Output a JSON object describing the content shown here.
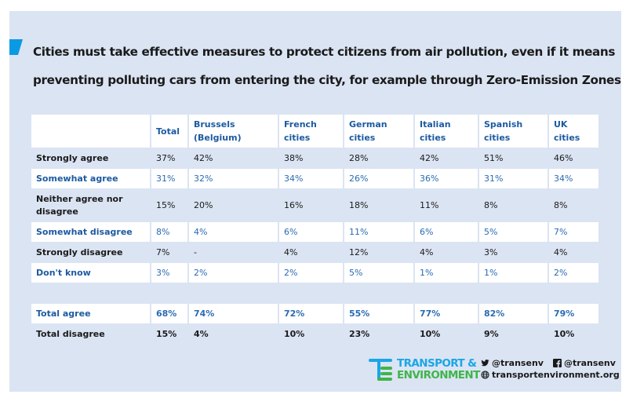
{
  "title": {
    "line1": "Cities must take effective measures to protect citizens from air pollution, even if it means",
    "line2": "preventing polluting cars from entering the city, for example through Zero-Emission Zones"
  },
  "table": {
    "columns": [
      "",
      "Total",
      "Brussels (Belgium)",
      "French cities",
      "German cities",
      "Italian cities",
      "Spanish cities",
      "UK cities"
    ],
    "header": {
      "c1": "Total",
      "c2a": "Brussels",
      "c2b": "(Belgium)",
      "c3a": "French",
      "c3b": "cities",
      "c4a": "German",
      "c4b": "cities",
      "c5a": "Italian",
      "c5b": "cities",
      "c6a": "Spanish",
      "c6b": "cities",
      "c7a": "UK",
      "c7b": "cities"
    },
    "rows": [
      {
        "label": "Strongly agree",
        "values": [
          "37%",
          "42%",
          "38%",
          "28%",
          "42%",
          "51%",
          "46%"
        ]
      },
      {
        "label": "Somewhat agree",
        "values": [
          "31%",
          "32%",
          "34%",
          "26%",
          "36%",
          "31%",
          "34%"
        ]
      },
      {
        "label": "Neither agree nor disagree",
        "values": [
          "15%",
          "20%",
          "16%",
          "18%",
          "11%",
          "8%",
          "8%"
        ]
      },
      {
        "label": "Somewhat disagree",
        "values": [
          "8%",
          "4%",
          "6%",
          "11%",
          "6%",
          "5%",
          "7%"
        ]
      },
      {
        "label": "Strongly disagree",
        "values": [
          "7%",
          "-",
          "4%",
          "12%",
          "4%",
          "3%",
          "4%"
        ]
      },
      {
        "label": "Don't know",
        "values": [
          "3%",
          "2%",
          "2%",
          "5%",
          "1%",
          "1%",
          "2%"
        ]
      }
    ],
    "totals": [
      {
        "label": "Total agree",
        "values": [
          "68%",
          "74%",
          "72%",
          "55%",
          "77%",
          "82%",
          "79%"
        ]
      },
      {
        "label": "Total disagree",
        "values": [
          "15%",
          "4%",
          "10%",
          "23%",
          "10%",
          "9%",
          "10%"
        ]
      }
    ]
  },
  "footer": {
    "brand_line1": "TRANSPORT &",
    "brand_line2": "ENVIRONMENT",
    "twitter": "@transenv",
    "facebook": "@transenv",
    "website": "transportenvironment.org"
  },
  "colors": {
    "panel_bg": "#dbe4f3",
    "accent": "#0a9ae3",
    "header_blue": "#1c5aa0",
    "brand_blue": "#1aa6e6",
    "brand_green": "#3fb54a"
  }
}
